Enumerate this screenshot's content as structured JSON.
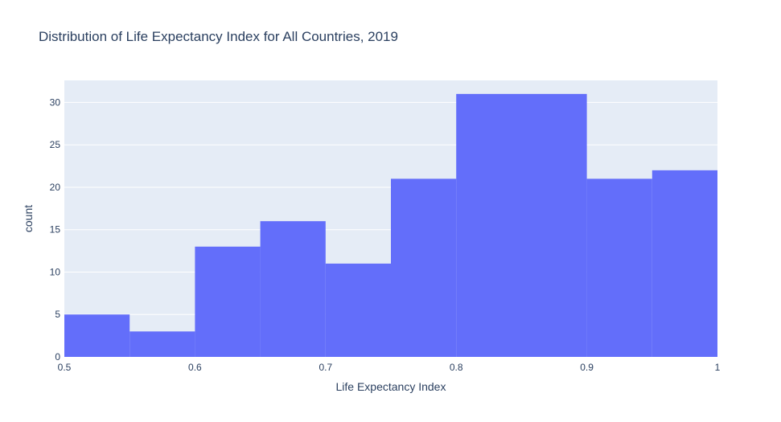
{
  "chart_data": {
    "type": "bar",
    "title": "Distribution of Life Expectancy Index for All Countries, 2019",
    "xlabel": "Life Expectancy Index",
    "ylabel": "count",
    "xlim": [
      0.5,
      1.0
    ],
    "ylim": [
      0,
      32.6
    ],
    "grid": true,
    "bar_color": "#636efa",
    "plot_bg": "#e5ecf6",
    "grid_color": "#ffffff",
    "text_color": "#2a3f5f",
    "x_ticks": [
      "0.5",
      "0.6",
      "0.7",
      "0.8",
      "0.9",
      "1"
    ],
    "x_tick_values": [
      0.5,
      0.6,
      0.7,
      0.8,
      0.9,
      1.0
    ],
    "y_ticks": [
      "0",
      "5",
      "10",
      "15",
      "20",
      "25",
      "30"
    ],
    "y_tick_values": [
      0,
      5,
      10,
      15,
      20,
      25,
      30
    ],
    "bins": [
      {
        "x0": 0.5,
        "x1": 0.55,
        "count": 5
      },
      {
        "x0": 0.55,
        "x1": 0.6,
        "count": 3
      },
      {
        "x0": 0.6,
        "x1": 0.65,
        "count": 13
      },
      {
        "x0": 0.65,
        "x1": 0.7,
        "count": 16
      },
      {
        "x0": 0.7,
        "x1": 0.75,
        "count": 11
      },
      {
        "x0": 0.75,
        "x1": 0.8,
        "count": 21
      },
      {
        "x0": 0.8,
        "x1": 0.9,
        "count": 31
      },
      {
        "x0": 0.9,
        "x1": 0.95,
        "count": 21
      },
      {
        "x0": 0.95,
        "x1": 1.0,
        "count": 22
      }
    ]
  }
}
